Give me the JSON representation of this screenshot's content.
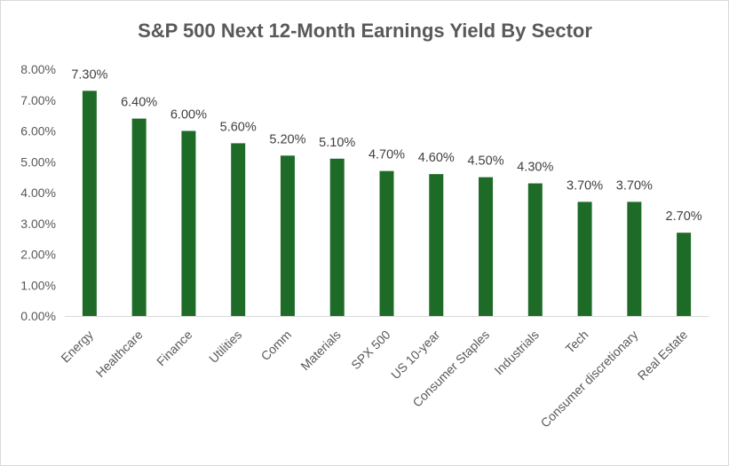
{
  "chart_data": {
    "type": "bar",
    "title": "S&P 500 Next 12-Month Earnings Yield By Sector",
    "categories": [
      "Energy",
      "Healthcare",
      "Finance",
      "Utilities",
      "Comm",
      "Materials",
      "SPX 500",
      "US 10-year",
      "Consumer Staples",
      "Industrials",
      "Tech",
      "Consumer discretionary",
      "Real Estate"
    ],
    "values": [
      7.3,
      6.4,
      6.0,
      5.6,
      5.2,
      5.1,
      4.7,
      4.6,
      4.5,
      4.3,
      3.7,
      3.7,
      2.7
    ],
    "data_labels": [
      "7.30%",
      "6.40%",
      "6.00%",
      "5.60%",
      "5.20%",
      "5.10%",
      "4.70%",
      "4.60%",
      "4.50%",
      "4.30%",
      "3.70%",
      "3.70%",
      "2.70%"
    ],
    "y_ticks": [
      "0.00%",
      "1.00%",
      "2.00%",
      "3.00%",
      "4.00%",
      "5.00%",
      "6.00%",
      "7.00%",
      "8.00%"
    ],
    "ylim": [
      0,
      8
    ],
    "xlabel": "",
    "ylabel": "",
    "grid": false,
    "legend": "none",
    "bar_color": "#1e6b28",
    "axis_color": "#d9d9d9",
    "text_color": "#595959"
  }
}
